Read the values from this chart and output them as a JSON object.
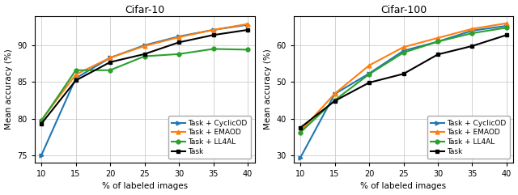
{
  "x": [
    10,
    15,
    20,
    25,
    30,
    35,
    40
  ],
  "cifar10": {
    "cyclic_od": [
      75.0,
      85.5,
      88.3,
      90.0,
      91.2,
      92.1,
      92.8
    ],
    "emaod": [
      79.8,
      86.0,
      88.3,
      89.9,
      91.1,
      92.1,
      92.9
    ],
    "ll4al": [
      79.7,
      86.6,
      86.6,
      88.5,
      88.8,
      89.5,
      89.4
    ],
    "task": [
      79.3,
      85.2,
      87.7,
      88.8,
      90.4,
      91.4,
      92.1
    ]
  },
  "cifar100": {
    "cyclic_od": [
      29.3,
      46.7,
      52.3,
      58.5,
      61.0,
      64.0,
      65.3
    ],
    "emaod": [
      36.5,
      46.8,
      54.5,
      59.5,
      62.0,
      64.5,
      66.0
    ],
    "ll4al": [
      36.2,
      45.0,
      52.1,
      58.0,
      61.0,
      63.3,
      64.8
    ],
    "task": [
      37.5,
      44.8,
      49.8,
      52.2,
      57.5,
      59.8,
      62.8
    ]
  },
  "colors": {
    "cyclic_od": "#1f77b4",
    "emaod": "#ff7f0e",
    "ll4al": "#2ca02c",
    "task": "#000000"
  },
  "markers": {
    "cyclic_od": ">",
    "emaod": "^",
    "ll4al": "o",
    "task": "s"
  },
  "labels": {
    "cyclic_od": "Task + CyclicOD",
    "emaod": "Task + EMAOD",
    "ll4al": "Task + LL4AL",
    "task": "Task"
  },
  "title1": "Cifar-10",
  "title2": "Cifar-100",
  "xlabel": "% of labeled images",
  "ylabel": "Mean accuracy (%)",
  "ylim1": [
    74,
    94
  ],
  "ylim2": [
    28,
    68
  ],
  "yticks1": [
    75,
    80,
    85,
    90
  ],
  "yticks2": [
    30,
    40,
    50,
    60
  ],
  "background_color": "#ffffff"
}
